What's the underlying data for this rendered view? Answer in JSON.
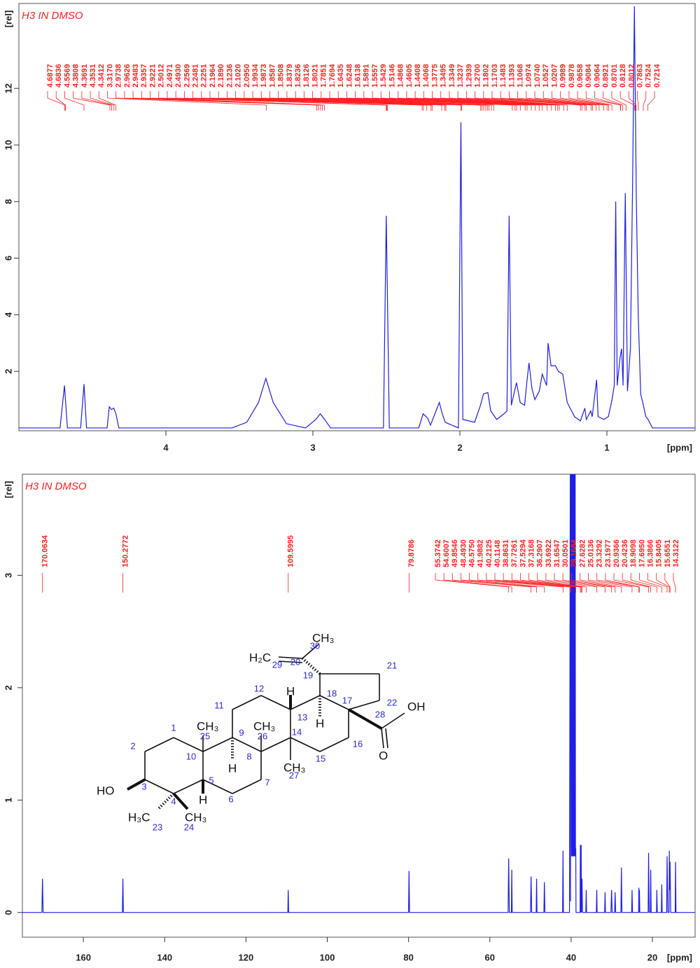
{
  "chart_data": [
    {
      "type": "line",
      "title": "H3 IN DMSO",
      "x_label": "[ppm]",
      "y_label": "[rel]",
      "xlim": [
        5.0,
        0.4
      ],
      "ylim": [
        -0.1,
        15
      ],
      "xticks": [
        4,
        3,
        2,
        1
      ],
      "yticks": [
        2,
        4,
        6,
        8,
        10,
        12
      ],
      "series": [
        {
          "color": "#1f1fe6",
          "x": [
            5.0,
            4.72,
            4.69,
            4.67,
            4.58,
            4.557,
            4.54,
            4.4,
            4.385,
            4.37,
            4.355,
            4.34,
            4.32,
            3.55,
            3.45,
            3.37,
            3.32,
            3.27,
            3.18,
            3.05,
            2.98,
            2.95,
            2.92,
            2.88,
            2.52,
            2.501,
            2.48,
            2.28,
            2.25,
            2.22,
            2.2,
            2.14,
            2.12,
            2.1,
            2.01,
            1.993,
            1.98,
            1.9,
            1.86,
            1.84,
            1.81,
            1.79,
            1.75,
            1.7,
            1.68,
            1.665,
            1.65,
            1.615,
            1.59,
            1.56,
            1.545,
            1.53,
            1.51,
            1.49,
            1.46,
            1.44,
            1.41,
            1.4,
            1.38,
            1.35,
            1.33,
            1.3,
            1.27,
            1.22,
            1.18,
            1.15,
            1.14,
            1.11,
            1.1,
            1.07,
            1.06,
            1.02,
            0.99,
            0.965,
            0.95,
            0.94,
            0.93,
            0.91,
            0.9,
            0.89,
            0.875,
            0.86,
            0.84,
            0.825,
            0.813,
            0.8,
            0.787,
            0.77,
            0.752,
            0.735,
            0.72,
            0.69,
            0.4
          ],
          "values": [
            0,
            0,
            1.5,
            0,
            0,
            1.55,
            0,
            0,
            0.75,
            0.65,
            0.7,
            0.5,
            0,
            0,
            0.2,
            0.9,
            1.75,
            0.9,
            0.15,
            0,
            0.3,
            0.5,
            0.3,
            0,
            0,
            7.5,
            0,
            0,
            0.5,
            0.35,
            0.1,
            0.9,
            0.5,
            0.2,
            0,
            10.8,
            0.3,
            0.2,
            0.8,
            1.2,
            1.25,
            0.6,
            0.3,
            0.5,
            0.6,
            7.5,
            0.8,
            1.6,
            0.9,
            0.8,
            1.6,
            2.3,
            1.4,
            1.0,
            1.3,
            1.9,
            1.5,
            3.0,
            2.2,
            2.2,
            2.0,
            1.9,
            0.9,
            0.4,
            0.25,
            0.7,
            0.3,
            0.6,
            0.4,
            1.7,
            0.4,
            0.3,
            0.4,
            1.0,
            1.5,
            8.0,
            1.5,
            2.5,
            2.8,
            1.5,
            8.3,
            1.3,
            2.8,
            8.7,
            14.9,
            8.2,
            4.0,
            1.2,
            0.8,
            0.4,
            0.3,
            0,
            0
          ]
        }
      ],
      "peak_color": "#ff2020",
      "peaks": [
        4.6877,
        4.6836,
        4.5569,
        4.3808,
        4.3691,
        4.3531,
        4.3412,
        3.317,
        2.9738,
        2.9626,
        2.9483,
        2.9357,
        2.9221,
        2.5012,
        2.4971,
        2.493,
        2.2569,
        2.2481,
        2.2251,
        2.1964,
        2.189,
        2.1236,
        2.102,
        2.095,
        1.9934,
        1.9873,
        1.8587,
        1.8508,
        1.8379,
        1.8236,
        1.8126,
        1.8021,
        1.7851,
        1.7694,
        1.6435,
        1.6248,
        1.6138,
        1.5891,
        1.5557,
        1.5429,
        1.5146,
        1.4868,
        1.4605,
        1.4408,
        1.4068,
        1.3775,
        1.3495,
        1.3349,
        1.3237,
        1.2939,
        1.27,
        1.1802,
        1.1703,
        1.1483,
        1.1393,
        1.1068,
        1.0974,
        1.074,
        1.0527,
        1.0207,
        0.9989,
        0.9878,
        0.9658,
        0.9084,
        0.9064,
        0.8921,
        0.8701,
        0.8128,
        0.8012,
        0.7863,
        0.7524,
        0.7214
      ],
      "peak_labels": [
        "4.6877",
        "4.6836",
        "4.5569",
        "4.3808",
        "4.3691",
        "4.3531",
        "4.3412",
        "3.3170",
        "2.9738",
        "2.9626",
        "2.9483",
        "2.9357",
        "2.9221",
        "2.5012",
        "2.4971",
        "2.4930",
        "2.2569",
        "2.2481",
        "2.2251",
        "2.1964",
        "2.1890",
        "2.1236",
        "2.1020",
        "2.0950",
        "1.9934",
        "1.9873",
        "1.8587",
        "1.8508",
        "1.8379",
        "1.8236",
        "1.8126",
        "1.8021",
        "1.7851",
        "1.7694",
        "1.6435",
        "1.6248",
        "1.6138",
        "1.5891",
        "1.5557",
        "1.5429",
        "1.5146",
        "1.4868",
        "1.4605",
        "1.4408",
        "1.4068",
        "1.3775",
        "1.3495",
        "1.3349",
        "1.3237",
        "1.2939",
        "1.2700",
        "1.1802",
        "1.1703",
        "1.1483",
        "1.1393",
        "1.1068",
        "1.0974",
        "1.0740",
        "1.0527",
        "1.0207",
        "0.9989",
        "0.9878",
        "0.9658",
        "0.9084",
        "0.9064",
        "0.8921",
        "0.8701",
        "0.8128",
        "0.8012",
        "0.7863",
        "0.7524",
        "0.7214"
      ]
    },
    {
      "type": "line",
      "title": "H3 IN DMSO",
      "x_label": "[ppm]",
      "y_label": "[rel]",
      "xlim": [
        175,
        9.5
      ],
      "ylim": [
        -0.22,
        3.9
      ],
      "xticks": [
        160,
        140,
        120,
        100,
        80,
        60,
        40,
        20
      ],
      "yticks": [
        0,
        1,
        2,
        3
      ],
      "series": [
        {
          "color": "#1f1fe6",
          "x": [
            175,
            170.2,
            170.06,
            169.9,
            150.4,
            150.28,
            150.15,
            109.7,
            109.6,
            109.5,
            80.0,
            79.88,
            79.75,
            55.5,
            55.37,
            55.2,
            54.7,
            54.6,
            54.5,
            50.0,
            49.85,
            49.7,
            48.6,
            48.49,
            48.4,
            46.7,
            46.58,
            46.45,
            42.1,
            41.99,
            41.9,
            40.4,
            40.21,
            40.15,
            40.11,
            40.0,
            39.9,
            39.8,
            39.7,
            39.6,
            39.5,
            39.4,
            39.3,
            39.2,
            39.1,
            39.0,
            38.93,
            38.86,
            38.8,
            37.8,
            37.73,
            37.63,
            37.53,
            37.45,
            37.32,
            37.2,
            36.4,
            36.29,
            36.2,
            33.8,
            33.69,
            33.6,
            31.75,
            31.65,
            31.55,
            30.2,
            30.05,
            29.9,
            29.3,
            29.17,
            29.05,
            27.75,
            27.63,
            27.5,
            25.1,
            25.01,
            24.9,
            23.4,
            23.33,
            23.26,
            23.2,
            23.1,
            21.05,
            20.94,
            20.8,
            20.5,
            20.42,
            20.3,
            19.0,
            18.91,
            18.8,
            17.8,
            17.7,
            17.6,
            16.5,
            16.39,
            16.2,
            15.9,
            15.84,
            15.75,
            15.66,
            15.5,
            14.4,
            14.31,
            14.2,
            9.5
          ],
          "values": [
            0,
            0,
            0.3,
            0,
            0,
            0.3,
            0,
            0,
            0.2,
            0,
            0,
            0.37,
            0,
            0,
            0.48,
            0,
            0,
            0.38,
            0,
            0,
            0.32,
            0,
            0,
            0.3,
            0,
            0,
            0.27,
            0,
            0,
            0.55,
            0,
            0,
            3.9,
            0.1,
            3.9,
            3.9,
            0.5,
            3.9,
            0.5,
            3.9,
            0.5,
            3.9,
            0.5,
            3.9,
            0.5,
            3.9,
            0.5,
            0.57,
            0,
            0,
            0.6,
            0,
            0.6,
            0,
            0.3,
            0,
            0,
            0.2,
            0,
            0,
            0.2,
            0,
            0,
            0.18,
            0,
            0,
            0.2,
            0,
            0,
            0.18,
            0,
            0,
            0.4,
            0,
            0,
            0.2,
            0,
            0,
            0.22,
            0,
            0.2,
            0,
            0,
            0.53,
            0,
            0,
            0.38,
            0,
            0,
            0.2,
            0,
            0,
            0.25,
            0,
            0,
            0.5,
            0,
            0,
            0.55,
            0.2,
            0.45,
            0,
            0,
            0.45,
            0,
            0
          ]
        }
      ],
      "peak_color": "#ff2020",
      "peaks": [
        170.0634,
        150.2772,
        109.5995,
        79.8786,
        55.3742,
        54.6007,
        49.8546,
        48.493,
        46.575,
        41.9882,
        40.2125,
        40.1148,
        38.8631,
        37.7261,
        37.5294,
        37.3168,
        36.2907,
        33.6922,
        31.6547,
        30.0501,
        29.1684,
        27.6282,
        25.0136,
        23.3292,
        23.1977,
        20.9366,
        20.4236,
        18.9098,
        17.695,
        16.3866,
        15.8405,
        15.6551,
        14.3122
      ],
      "peak_labels": [
        "170.0634",
        "150.2772",
        "109.5995",
        "79.8786",
        "55.3742",
        "54.6007",
        "49.8546",
        "48.4930",
        "46.5750",
        "41.9882",
        "40.2125",
        "40.1148",
        "38.8631",
        "37.7261",
        "37.5294",
        "37.3168",
        "36.2907",
        "33.6922",
        "31.6547",
        "30.0501",
        "29.1684",
        "27.6282",
        "25.0136",
        "23.3292",
        "23.1977",
        "20.9366",
        "20.4236",
        "18.9098",
        "17.6950",
        "16.3866",
        "15.8405",
        "15.6551",
        "14.3122"
      ]
    }
  ],
  "structure": {
    "atom_numbers": [
      1,
      2,
      3,
      4,
      5,
      6,
      7,
      8,
      9,
      10,
      11,
      12,
      13,
      14,
      15,
      16,
      17,
      18,
      19,
      20,
      21,
      22,
      23,
      24,
      25,
      26,
      27,
      28,
      29,
      30
    ],
    "groups": [
      "H₂C",
      "CH₃",
      "CH₃",
      "CH₃",
      "CH₃",
      "H₃C",
      "CH₃",
      "HO",
      "OH",
      "O",
      "H",
      "H",
      "H",
      "H"
    ]
  }
}
